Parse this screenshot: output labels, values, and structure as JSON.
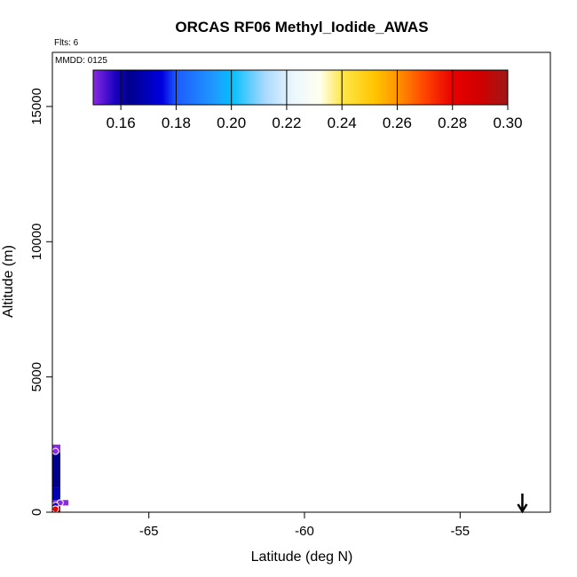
{
  "chart_data": {
    "type": "scatter",
    "title": "ORCAS RF06 Methyl_Iodide_AWAS",
    "top_left_note": "Flts: 6",
    "date_note": "MMDD: 0125",
    "xlabel": "Latitude (deg N)",
    "ylabel": "Altitude (m)",
    "xlim": [
      -68.1,
      -52.1
    ],
    "ylim": [
      0,
      17000
    ],
    "x_ticks": [
      "-65",
      "-60",
      "-55"
    ],
    "x_tick_values": [
      -65,
      -60,
      -55
    ],
    "y_ticks": [
      "0",
      "5000",
      "10000",
      "15000"
    ],
    "y_tick_values": [
      0,
      5000,
      10000,
      15000
    ],
    "grid": false,
    "colorbar": {
      "range": [
        0.15,
        0.3
      ],
      "tick_labels": [
        "0.16",
        "0.18",
        "0.20",
        "0.22",
        "0.24",
        "0.26",
        "0.28",
        "0.30"
      ],
      "tick_values": [
        0.16,
        0.18,
        0.2,
        0.22,
        0.24,
        0.26,
        0.28,
        0.3
      ],
      "stops": [
        {
          "v": 0.15,
          "color": "#8a2be2"
        },
        {
          "v": 0.158,
          "color": "#1a00c0"
        },
        {
          "v": 0.163,
          "color": "#00008b"
        },
        {
          "v": 0.175,
          "color": "#0000e0"
        },
        {
          "v": 0.18,
          "color": "#1e5aff"
        },
        {
          "v": 0.195,
          "color": "#1ea0ff"
        },
        {
          "v": 0.2,
          "color": "#00bfff"
        },
        {
          "v": 0.212,
          "color": "#a8d8ff"
        },
        {
          "v": 0.222,
          "color": "#eaf6ff"
        },
        {
          "v": 0.232,
          "color": "#fffff0"
        },
        {
          "v": 0.24,
          "color": "#ffe74a"
        },
        {
          "v": 0.252,
          "color": "#ffc400"
        },
        {
          "v": 0.26,
          "color": "#ff9400"
        },
        {
          "v": 0.27,
          "color": "#ff4400"
        },
        {
          "v": 0.28,
          "color": "#e80000"
        },
        {
          "v": 0.29,
          "color": "#d00000"
        },
        {
          "v": 0.3,
          "color": "#a01818"
        }
      ]
    },
    "profile_bar": [
      {
        "alt_range": [
          0,
          300
        ],
        "color": "#a80000"
      },
      {
        "alt_range": [
          300,
          900
        ],
        "color": "#0000b0"
      },
      {
        "alt_range": [
          900,
          2200
        ],
        "color": "#00008b"
      },
      {
        "alt_range": [
          2200,
          2500
        ],
        "color": "#8a2be2"
      }
    ],
    "points": [
      {
        "x": -68.0,
        "y": 2250,
        "value": 0.15
      },
      {
        "x": -67.85,
        "y": 350,
        "value": 0.15
      },
      {
        "x": -68.0,
        "y": 250,
        "value": 0.163
      },
      {
        "x": -68.0,
        "y": 120,
        "value": 0.29
      }
    ],
    "marker": {
      "x": -53.0,
      "y": 150,
      "symbol": "down-arrow"
    }
  }
}
